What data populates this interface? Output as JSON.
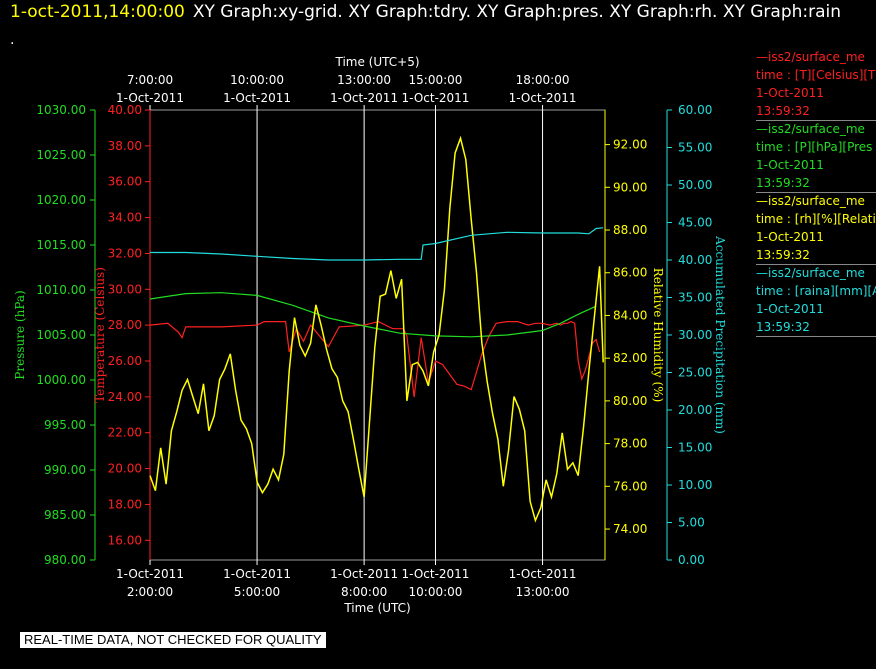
{
  "header": {
    "timestamp": "1-oct-2011,14:00:00",
    "tabs": "XY Graph:xy-grid.  XY Graph:tdry.  XY Graph:pres.  XY Graph:rh.  XY Graph:rain",
    "dot": "."
  },
  "footer": {
    "notice": "REAL-TIME DATA, NOT CHECKED FOR QUALITY"
  },
  "colors": {
    "temperature": "#ff2020",
    "pressure": "#22dd22",
    "rh": "#ffff00",
    "rain": "#22dddd",
    "grid": "#ffffff",
    "frame": "#9a9a9a"
  },
  "legend": [
    {
      "color": "#ff2020",
      "line1": "—iss2/surface_me",
      "line2": "time : [T][Celsius][T",
      "line3": "1-Oct-2011",
      "line4": "13:59:32"
    },
    {
      "color": "#22dd22",
      "line1": "—iss2/surface_me",
      "line2": "time : [P][hPa][Pres",
      "line3": "1-Oct-2011",
      "line4": "13:59:32"
    },
    {
      "color": "#ffff00",
      "line1": "—iss2/surface_me",
      "line2": "time : [rh][%][Relati",
      "line3": "1-Oct-2011",
      "line4": "13:59:32"
    },
    {
      "color": "#22dddd",
      "line1": "—iss2/surface_me",
      "line2": "time : [raina][mm][A",
      "line3": "1-Oct-2011",
      "line4": "13:59:32"
    }
  ],
  "chart_data": {
    "type": "line",
    "x_unit": "hours (UTC)",
    "xlim": [
      0.0,
      12.75
    ],
    "xlabel_bottom": "Time (UTC)",
    "xlabel_top": "Time (UTC+5)",
    "bottom_ticks": [
      {
        "x": 0,
        "date": "1-Oct-2011",
        "time": "2:00:00"
      },
      {
        "x": 3,
        "date": "1-Oct-2011",
        "time": "5:00:00"
      },
      {
        "x": 6,
        "date": "1-Oct-2011",
        "time": "8:00:00"
      },
      {
        "x": 8,
        "date": "1-Oct-2011",
        "time": "10:00:00"
      },
      {
        "x": 11,
        "date": "1-Oct-2011",
        "time": "13:00:00"
      }
    ],
    "top_ticks": [
      {
        "x": 0,
        "time": "7:00:00",
        "date": "1-Oct-2011"
      },
      {
        "x": 3,
        "time": "10:00:00",
        "date": "1-Oct-2011"
      },
      {
        "x": 6,
        "time": "13:00:00",
        "date": "1-Oct-2011"
      },
      {
        "x": 8,
        "time": "15:00:00",
        "date": "1-Oct-2011"
      },
      {
        "x": 11,
        "time": "18:00:00",
        "date": "1-Oct-2011"
      }
    ],
    "axes": {
      "pressure": {
        "label": "Pressure (hPa)",
        "ylim": [
          980,
          1030
        ],
        "ticks": [
          "980.00",
          "985.00",
          "990.00",
          "995.00",
          "1000.00",
          "1005.00",
          "1010.00",
          "1015.00",
          "1020.00",
          "1025.00",
          "1030.00"
        ]
      },
      "temperature": {
        "label": "Temperature (Celsius)",
        "ylim": [
          14.9,
          40
        ],
        "ticks": [
          "16.00",
          "18.00",
          "20.00",
          "22.00",
          "24.00",
          "26.00",
          "28.00",
          "30.00",
          "32.00",
          "34.00",
          "36.00",
          "38.00",
          "40.00"
        ]
      },
      "rh": {
        "label": "Relative Humidity (%)",
        "ylim": [
          72.55,
          93.62
        ],
        "ticks": [
          "74.00",
          "76.00",
          "78.00",
          "80.00",
          "82.00",
          "84.00",
          "86.00",
          "88.00",
          "90.00",
          "92.00"
        ]
      },
      "rain": {
        "label": "Accumulated Precipitation (mm)",
        "ylim": [
          0,
          60
        ],
        "ticks": [
          "0.00",
          "5.00",
          "10.00",
          "15.00",
          "20.00",
          "25.00",
          "30.00",
          "35.00",
          "40.00",
          "45.00",
          "50.00",
          "55.00",
          "60.00"
        ]
      }
    },
    "series": [
      {
        "name": "iss2/surface_me time : [T][Celsius]",
        "axis": "temperature",
        "color": "#ff2020",
        "x": [
          0,
          0.5,
          0.8,
          0.9,
          1,
          2,
          3,
          3.2,
          3.8,
          3.9,
          4.1,
          4.3,
          4.5,
          5,
          5.3,
          6,
          6.4,
          6.8,
          7.1,
          7.2,
          7.4,
          7.6,
          7.8,
          8,
          8.1,
          8.2,
          8.6,
          8.8,
          9,
          9.3,
          9.5,
          9.7,
          10,
          10.3,
          10.6,
          10.8,
          11,
          11.2,
          11.4,
          11.5,
          11.6,
          11.7,
          11.8,
          11.9,
          12,
          12.1,
          12.2,
          12.4,
          12.5,
          12.6
        ],
        "y": [
          28.0,
          28.1,
          27.6,
          27.3,
          27.9,
          27.9,
          28.0,
          28.2,
          28.2,
          26.5,
          27.8,
          27.1,
          28.0,
          26.8,
          27.9,
          28.0,
          28.2,
          27.8,
          27.8,
          27.4,
          24.0,
          27.3,
          24.8,
          26.0,
          25.9,
          25.8,
          24.7,
          24.6,
          24.4,
          26.4,
          27.4,
          28.1,
          28.2,
          28.2,
          28.0,
          28.1,
          28.1,
          28.0,
          28.1,
          28.0,
          28.1,
          28.1,
          28.2,
          28.1,
          26.0,
          25.0,
          25.5,
          27.0,
          27.2,
          26.5
        ]
      },
      {
        "name": "iss2/surface_me time : [P][hPa]",
        "axis": "pressure",
        "color": "#22dd22",
        "x": [
          0,
          1,
          2,
          3,
          4,
          5,
          6,
          7,
          8,
          9,
          10,
          11,
          11.5,
          12,
          12.5
        ],
        "y": [
          1009.0,
          1009.6,
          1009.7,
          1009.4,
          1008.3,
          1006.9,
          1006.0,
          1005.2,
          1004.9,
          1004.8,
          1005.0,
          1005.5,
          1006.3,
          1007.3,
          1008.2
        ]
      },
      {
        "name": "iss2/surface_me time : [rh][%]",
        "axis": "rh",
        "color": "#ffff00",
        "x": [
          0,
          0.15,
          0.3,
          0.45,
          0.6,
          0.75,
          0.9,
          1.05,
          1.2,
          1.35,
          1.5,
          1.65,
          1.8,
          1.95,
          2.1,
          2.25,
          2.4,
          2.55,
          2.7,
          2.85,
          3.0,
          3.15,
          3.3,
          3.45,
          3.6,
          3.75,
          3.9,
          4.05,
          4.2,
          4.35,
          4.5,
          4.65,
          4.8,
          4.95,
          5.1,
          5.25,
          5.4,
          5.55,
          5.7,
          5.85,
          6.0,
          6.15,
          6.3,
          6.45,
          6.6,
          6.75,
          6.9,
          7.05,
          7.2,
          7.35,
          7.5,
          7.65,
          7.8,
          7.95,
          8.1,
          8.25,
          8.4,
          8.55,
          8.7,
          8.85,
          9.0,
          9.15,
          9.3,
          9.45,
          9.6,
          9.75,
          9.9,
          10.05,
          10.2,
          10.35,
          10.5,
          10.65,
          10.8,
          10.95,
          11.1,
          11.25,
          11.4,
          11.55,
          11.7,
          11.85,
          12.0,
          12.15,
          12.3,
          12.45,
          12.6,
          12.7
        ],
        "y": [
          76.5,
          75.8,
          77.8,
          76.1,
          78.6,
          79.5,
          80.5,
          81.0,
          80.2,
          79.4,
          80.8,
          78.6,
          79.3,
          81.0,
          81.5,
          82.2,
          80.5,
          79.1,
          78.7,
          78.0,
          76.2,
          75.7,
          76.1,
          76.8,
          76.3,
          77.5,
          81.4,
          83.9,
          82.6,
          82.1,
          82.7,
          84.5,
          83.5,
          82.4,
          81.5,
          81.1,
          80.0,
          79.5,
          78.2,
          76.8,
          75.5,
          79.0,
          82.5,
          84.9,
          85.0,
          86.1,
          84.8,
          85.7,
          80.0,
          81.7,
          81.8,
          81.4,
          80.7,
          82.3,
          83.1,
          85.2,
          89.0,
          91.6,
          92.3,
          91.3,
          88.5,
          86.0,
          82.7,
          80.9,
          79.4,
          78.2,
          76.0,
          77.7,
          80.2,
          79.6,
          78.6,
          75.3,
          74.4,
          75.0,
          76.3,
          75.5,
          76.6,
          78.5,
          76.8,
          77.1,
          76.5,
          78.8,
          81.4,
          83.9,
          86.3,
          81.8
        ]
      },
      {
        "name": "iss2/surface_me time : [raina][mm]",
        "axis": "rain",
        "color": "#22dddd",
        "x": [
          0,
          1,
          2,
          3,
          4,
          5,
          6,
          7,
          7.6,
          7.65,
          8,
          9,
          10,
          11,
          12,
          12.3,
          12.5,
          12.7
        ],
        "y": [
          41.0,
          41.0,
          40.8,
          40.5,
          40.2,
          40.0,
          40.0,
          40.1,
          40.1,
          42.0,
          42.2,
          43.3,
          43.7,
          43.6,
          43.6,
          43.5,
          44.2,
          44.3
        ]
      }
    ]
  }
}
